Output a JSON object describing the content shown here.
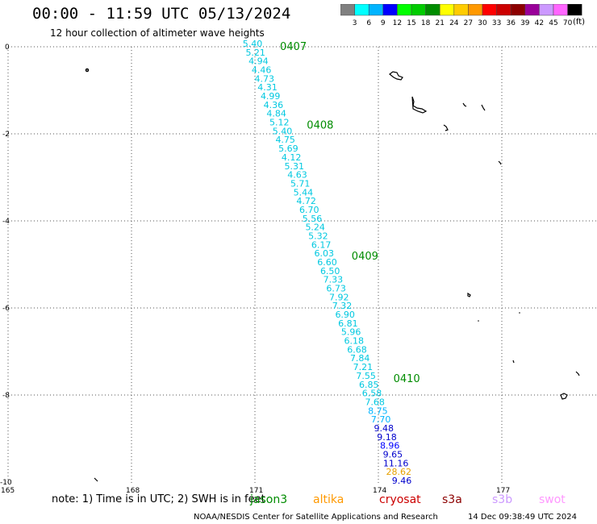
{
  "title": "00:00 - 11:59 UTC 05/13/2024",
  "subtitle": "12 hour collection of altimeter wave heights",
  "colorbar": {
    "unit": "(ft)",
    "labels": [
      "3",
      "6",
      "9",
      "12",
      "15",
      "18",
      "21",
      "24",
      "27",
      "30",
      "33",
      "36",
      "39",
      "42",
      "45",
      "70"
    ],
    "colors": [
      "#808080",
      "#00ffff",
      "#00b4ff",
      "#0000ff",
      "#00ff00",
      "#00cc00",
      "#008c00",
      "#ffff00",
      "#ffcc00",
      "#ff9900",
      "#ff0000",
      "#cc0000",
      "#8c0000",
      "#990099",
      "#cc99ff",
      "#ff66ff",
      "#000000"
    ]
  },
  "axes": {
    "lon_labels": [
      "165",
      "168",
      "171",
      "174",
      "177"
    ],
    "lat_labels": [
      "0",
      "-2",
      "-4",
      "-6",
      "-8",
      "-10"
    ]
  },
  "track": {
    "time_labels": [
      {
        "text": "0407",
        "after_index": 0
      },
      {
        "text": "0408",
        "after_index": 9
      },
      {
        "text": "0409",
        "after_index": 24
      },
      {
        "text": "0410",
        "after_index": 38
      }
    ],
    "values": [
      "5.40",
      "5.21",
      "4.94",
      "4.46",
      "4.73",
      "4.31",
      "4.99",
      "4.36",
      "4.84",
      "5.12",
      "5.40",
      "4.75",
      "5.69",
      "4.12",
      "5.31",
      "4.63",
      "5.71",
      "5.44",
      "4.72",
      "6.70",
      "5.56",
      "5.24",
      "5.32",
      "6.17",
      "6.03",
      "6.60",
      "6.50",
      "7.33",
      "6.73",
      "7.92",
      "7.32",
      "6.90",
      "6.81",
      "5.96",
      "6.18",
      "6.68",
      "7.84",
      "7.21",
      "7.55",
      "6.85",
      "6.58",
      "7.68",
      "8.75",
      "7.70",
      "9.48",
      "9.18",
      "8.96",
      "9.65",
      "11.16",
      "28.62",
      "9.46"
    ],
    "colors": [
      "#00c8e0",
      "#00c8e0",
      "#00c8e0",
      "#00c8e0",
      "#00c8e0",
      "#00c8e0",
      "#00c8e0",
      "#00c8e0",
      "#00c8e0",
      "#00c8e0",
      "#00c8e0",
      "#00c8e0",
      "#00c8e0",
      "#00c8e0",
      "#00c8e0",
      "#00c8e0",
      "#00c8e0",
      "#00c8e0",
      "#00c8e0",
      "#00c8e0",
      "#00c8e0",
      "#00c8e0",
      "#00c8e0",
      "#00c8e0",
      "#00c8e0",
      "#00c8e0",
      "#00c8e0",
      "#00c8e0",
      "#00c8e0",
      "#00c8e0",
      "#00c8e0",
      "#00c8e0",
      "#00c8e0",
      "#00c8e0",
      "#00c8e0",
      "#00c8e0",
      "#00c8e0",
      "#00c8e0",
      "#00c8e0",
      "#00c8e0",
      "#00c8e0",
      "#00c8e0",
      "#00b4ff",
      "#00b4ff",
      "#0000cc",
      "#0000cc",
      "#0000ff",
      "#0000cc",
      "#0000cc",
      "#e6a000",
      "#0000cc"
    ]
  },
  "note": "note: 1) Time is in UTC; 2) SWH is in feet",
  "legend": [
    {
      "name": "jason3",
      "color": "#008c00"
    },
    {
      "name": "altika",
      "color": "#ff9900"
    },
    {
      "name": "cryosat",
      "color": "#cc0000"
    },
    {
      "name": "s3a",
      "color": "#8c0000"
    },
    {
      "name": "s3b",
      "color": "#cc99ff"
    },
    {
      "name": "swot",
      "color": "#ff99ff"
    }
  ],
  "footer_left": "NOAA/NESDIS Center for Satellite Applications and Research",
  "footer_right": "14 Dec 09:38:49 UTC 2024"
}
